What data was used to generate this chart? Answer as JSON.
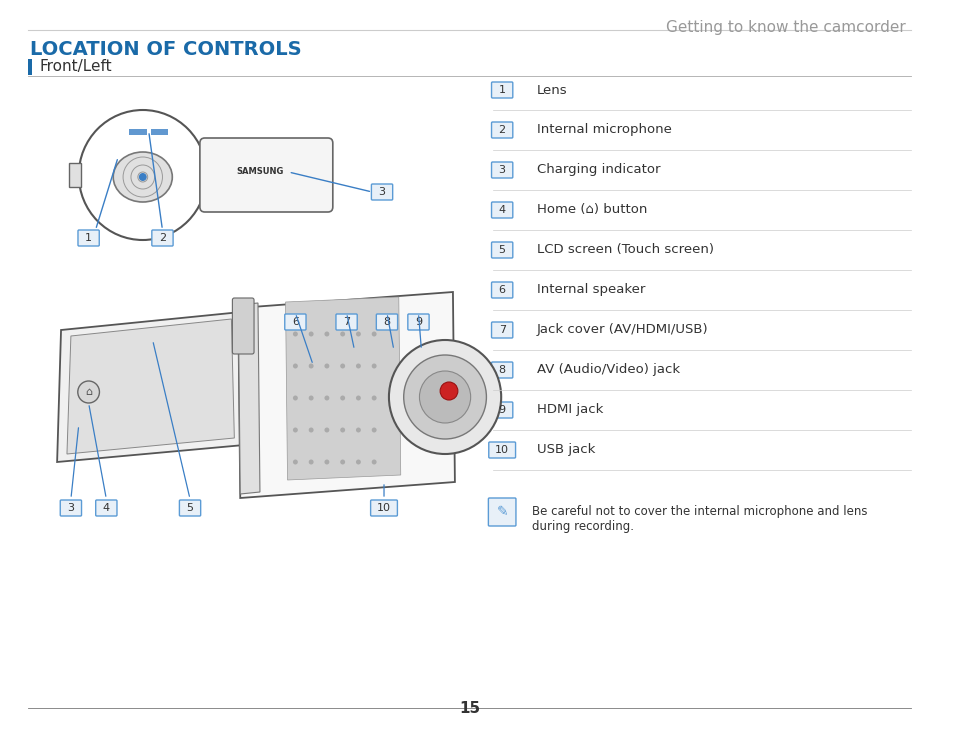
{
  "page_title": "Getting to know the camcorder",
  "section_title": "LOCATION OF CONTROLS",
  "subsection": "Front/Left",
  "items": [
    {
      "num": "1",
      "label": "Lens"
    },
    {
      "num": "2",
      "label": "Internal microphone"
    },
    {
      "num": "3",
      "label": "Charging indicator"
    },
    {
      "num": "4",
      "label": "Home (⌂) button"
    },
    {
      "num": "5",
      "label": "LCD screen (Touch screen)"
    },
    {
      "num": "6",
      "label": "Internal speaker"
    },
    {
      "num": "7",
      "label": "Jack cover (AV/HDMI/USB)"
    },
    {
      "num": "8",
      "label": "AV (Audio/Video) jack"
    },
    {
      "num": "9",
      "label": "HDMI jack"
    },
    {
      "num": "10",
      "label": "USB jack"
    }
  ],
  "note": "Be careful not to cover the internal microphone and lens\nduring recording.",
  "page_num": "15",
  "title_color": "#1a6aa8",
  "section_title_color": "#1a6aa8",
  "header_text_color": "#999999",
  "badge_border_color": "#5b9bd5",
  "badge_bg_color": "#e8f0f8",
  "line_color": "#cccccc",
  "text_color": "#333333",
  "subsection_bar_color": "#1a6aa8",
  "note_badge_color": "#5b9bd5"
}
